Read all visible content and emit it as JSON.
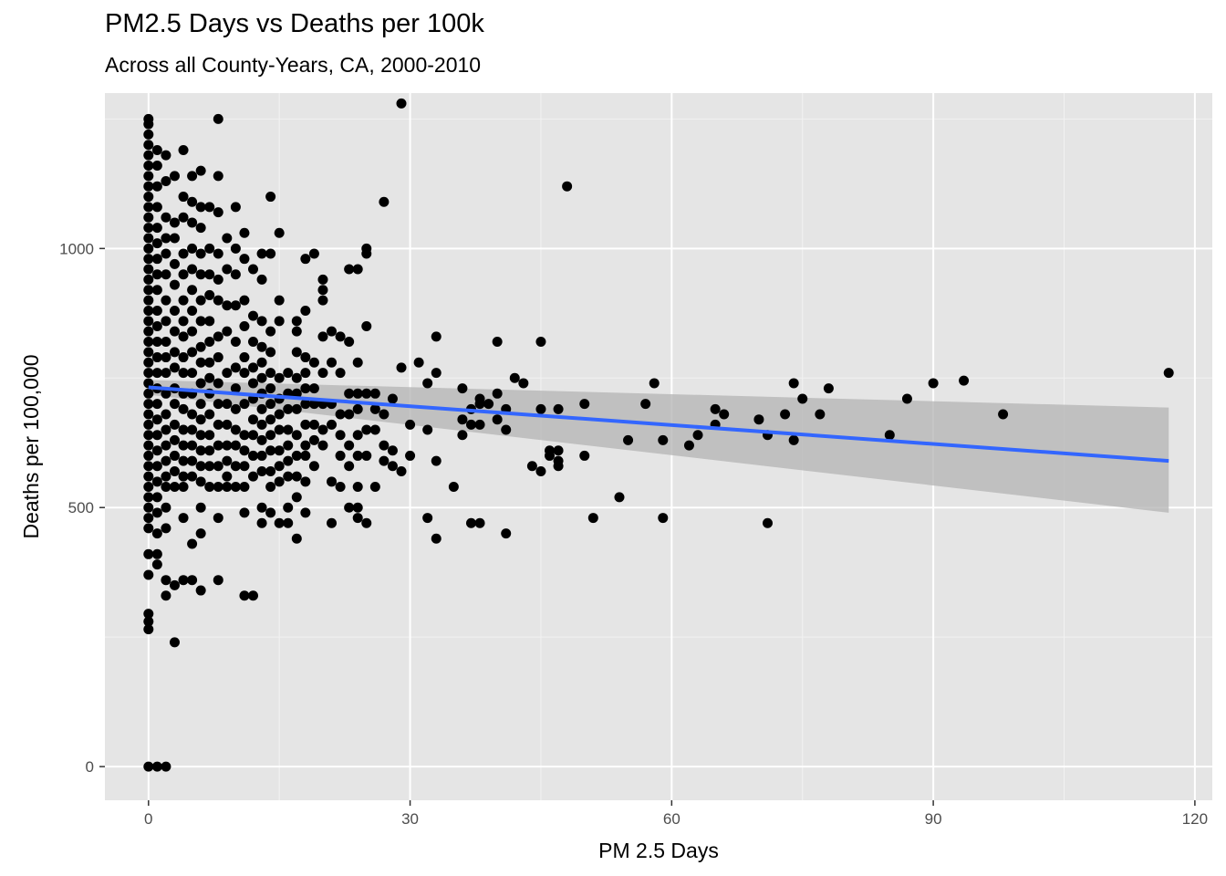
{
  "chart_data": {
    "type": "scatter",
    "title": "PM2.5 Days vs Deaths per 100k",
    "subtitle": "Across all County-Years, CA, 2000-2010",
    "xlabel": "PM 2.5 Days",
    "ylabel": "Deaths per 100,000",
    "xlim": [
      -5,
      122
    ],
    "ylim": [
      -65,
      1300
    ],
    "x_ticks": [
      0,
      30,
      60,
      90,
      120
    ],
    "x_tick_labels": [
      "0",
      "30",
      "60",
      "90",
      "120"
    ],
    "y_ticks": [
      0,
      500,
      1000
    ],
    "y_tick_labels": [
      "0",
      "500",
      "1000"
    ],
    "grid": true,
    "background": "#e5e5e5",
    "point_color": "#000000",
    "trend_color": "#3366ff",
    "band_color": "#b3b3b3",
    "trend": {
      "x": [
        0,
        117
      ],
      "y": [
        732,
        590
      ]
    },
    "confidence_band": {
      "x": [
        0,
        117
      ],
      "lower": [
        718,
        490
      ],
      "upper": [
        746,
        693
      ]
    },
    "points": [
      [
        0,
        1250
      ],
      [
        0,
        1240
      ],
      [
        0,
        1220
      ],
      [
        0,
        1200
      ],
      [
        0,
        1180
      ],
      [
        0,
        1160
      ],
      [
        0,
        1140
      ],
      [
        0,
        1120
      ],
      [
        0,
        1100
      ],
      [
        0,
        1080
      ],
      [
        0,
        1060
      ],
      [
        0,
        1040
      ],
      [
        0,
        1020
      ],
      [
        0,
        1000
      ],
      [
        0,
        980
      ],
      [
        0,
        960
      ],
      [
        0,
        940
      ],
      [
        0,
        920
      ],
      [
        0,
        900
      ],
      [
        0,
        880
      ],
      [
        0,
        860
      ],
      [
        0,
        840
      ],
      [
        0,
        820
      ],
      [
        0,
        800
      ],
      [
        0,
        780
      ],
      [
        0,
        760
      ],
      [
        0,
        740
      ],
      [
        0,
        720
      ],
      [
        0,
        700
      ],
      [
        0,
        680
      ],
      [
        0,
        660
      ],
      [
        0,
        640
      ],
      [
        0,
        620
      ],
      [
        0,
        600
      ],
      [
        0,
        580
      ],
      [
        0,
        560
      ],
      [
        0,
        540
      ],
      [
        0,
        520
      ],
      [
        0,
        500
      ],
      [
        0,
        480
      ],
      [
        0,
        460
      ],
      [
        0,
        410
      ],
      [
        0,
        370
      ],
      [
        0,
        295
      ],
      [
        0,
        280
      ],
      [
        0,
        265
      ],
      [
        0,
        0
      ],
      [
        1,
        1190
      ],
      [
        1,
        1160
      ],
      [
        1,
        1120
      ],
      [
        1,
        1080
      ],
      [
        1,
        1040
      ],
      [
        1,
        1010
      ],
      [
        1,
        980
      ],
      [
        1,
        950
      ],
      [
        1,
        920
      ],
      [
        1,
        880
      ],
      [
        1,
        850
      ],
      [
        1,
        820
      ],
      [
        1,
        790
      ],
      [
        1,
        760
      ],
      [
        1,
        730
      ],
      [
        1,
        700
      ],
      [
        1,
        670
      ],
      [
        1,
        640
      ],
      [
        1,
        610
      ],
      [
        1,
        580
      ],
      [
        1,
        550
      ],
      [
        1,
        520
      ],
      [
        1,
        490
      ],
      [
        1,
        450
      ],
      [
        1,
        410
      ],
      [
        1,
        390
      ],
      [
        1,
        0
      ],
      [
        2,
        1180
      ],
      [
        2,
        1130
      ],
      [
        2,
        1060
      ],
      [
        2,
        1020
      ],
      [
        2,
        990
      ],
      [
        2,
        950
      ],
      [
        2,
        900
      ],
      [
        2,
        860
      ],
      [
        2,
        820
      ],
      [
        2,
        790
      ],
      [
        2,
        760
      ],
      [
        2,
        720
      ],
      [
        2,
        680
      ],
      [
        2,
        650
      ],
      [
        2,
        620
      ],
      [
        2,
        590
      ],
      [
        2,
        560
      ],
      [
        2,
        540
      ],
      [
        2,
        500
      ],
      [
        2,
        460
      ],
      [
        2,
        360
      ],
      [
        2,
        330
      ],
      [
        2,
        0
      ],
      [
        3,
        1140
      ],
      [
        3,
        1050
      ],
      [
        3,
        1020
      ],
      [
        3,
        970
      ],
      [
        3,
        930
      ],
      [
        3,
        880
      ],
      [
        3,
        840
      ],
      [
        3,
        800
      ],
      [
        3,
        770
      ],
      [
        3,
        730
      ],
      [
        3,
        700
      ],
      [
        3,
        660
      ],
      [
        3,
        630
      ],
      [
        3,
        600
      ],
      [
        3,
        570
      ],
      [
        3,
        540
      ],
      [
        3,
        350
      ],
      [
        3,
        240
      ],
      [
        4,
        1190
      ],
      [
        4,
        1100
      ],
      [
        4,
        1060
      ],
      [
        4,
        990
      ],
      [
        4,
        950
      ],
      [
        4,
        900
      ],
      [
        4,
        860
      ],
      [
        4,
        830
      ],
      [
        4,
        790
      ],
      [
        4,
        760
      ],
      [
        4,
        720
      ],
      [
        4,
        690
      ],
      [
        4,
        650
      ],
      [
        4,
        620
      ],
      [
        4,
        590
      ],
      [
        4,
        560
      ],
      [
        4,
        540
      ],
      [
        4,
        480
      ],
      [
        4,
        360
      ],
      [
        5,
        1140
      ],
      [
        5,
        1090
      ],
      [
        5,
        1050
      ],
      [
        5,
        1000
      ],
      [
        5,
        960
      ],
      [
        5,
        920
      ],
      [
        5,
        880
      ],
      [
        5,
        840
      ],
      [
        5,
        800
      ],
      [
        5,
        760
      ],
      [
        5,
        720
      ],
      [
        5,
        680
      ],
      [
        5,
        650
      ],
      [
        5,
        620
      ],
      [
        5,
        590
      ],
      [
        5,
        560
      ],
      [
        5,
        430
      ],
      [
        5,
        360
      ],
      [
        6,
        1150
      ],
      [
        6,
        1080
      ],
      [
        6,
        1040
      ],
      [
        6,
        990
      ],
      [
        6,
        950
      ],
      [
        6,
        900
      ],
      [
        6,
        860
      ],
      [
        6,
        810
      ],
      [
        6,
        780
      ],
      [
        6,
        740
      ],
      [
        6,
        700
      ],
      [
        6,
        670
      ],
      [
        6,
        640
      ],
      [
        6,
        610
      ],
      [
        6,
        580
      ],
      [
        6,
        550
      ],
      [
        6,
        500
      ],
      [
        6,
        450
      ],
      [
        6,
        340
      ],
      [
        7,
        1080
      ],
      [
        7,
        1000
      ],
      [
        7,
        950
      ],
      [
        7,
        910
      ],
      [
        7,
        860
      ],
      [
        7,
        820
      ],
      [
        7,
        780
      ],
      [
        7,
        750
      ],
      [
        7,
        720
      ],
      [
        7,
        680
      ],
      [
        7,
        640
      ],
      [
        7,
        610
      ],
      [
        7,
        580
      ],
      [
        7,
        540
      ],
      [
        8,
        1250
      ],
      [
        8,
        1140
      ],
      [
        8,
        1070
      ],
      [
        8,
        990
      ],
      [
        8,
        940
      ],
      [
        8,
        900
      ],
      [
        8,
        830
      ],
      [
        8,
        790
      ],
      [
        8,
        740
      ],
      [
        8,
        700
      ],
      [
        8,
        660
      ],
      [
        8,
        620
      ],
      [
        8,
        580
      ],
      [
        8,
        540
      ],
      [
        8,
        480
      ],
      [
        8,
        360
      ],
      [
        9,
        1020
      ],
      [
        9,
        960
      ],
      [
        9,
        890
      ],
      [
        9,
        840
      ],
      [
        9,
        760
      ],
      [
        9,
        700
      ],
      [
        9,
        660
      ],
      [
        9,
        620
      ],
      [
        9,
        590
      ],
      [
        9,
        560
      ],
      [
        9,
        540
      ],
      [
        10,
        1080
      ],
      [
        10,
        1000
      ],
      [
        10,
        950
      ],
      [
        10,
        890
      ],
      [
        10,
        820
      ],
      [
        10,
        770
      ],
      [
        10,
        730
      ],
      [
        10,
        690
      ],
      [
        10,
        650
      ],
      [
        10,
        620
      ],
      [
        10,
        580
      ],
      [
        10,
        540
      ],
      [
        11,
        1030
      ],
      [
        11,
        980
      ],
      [
        11,
        900
      ],
      [
        11,
        850
      ],
      [
        11,
        790
      ],
      [
        11,
        760
      ],
      [
        11,
        700
      ],
      [
        11,
        640
      ],
      [
        11,
        610
      ],
      [
        11,
        580
      ],
      [
        11,
        540
      ],
      [
        11,
        490
      ],
      [
        11,
        330
      ],
      [
        12,
        960
      ],
      [
        12,
        870
      ],
      [
        12,
        820
      ],
      [
        12,
        770
      ],
      [
        12,
        740
      ],
      [
        12,
        710
      ],
      [
        12,
        670
      ],
      [
        12,
        640
      ],
      [
        12,
        600
      ],
      [
        12,
        560
      ],
      [
        12,
        330
      ],
      [
        13,
        990
      ],
      [
        13,
        940
      ],
      [
        13,
        860
      ],
      [
        13,
        810
      ],
      [
        13,
        780
      ],
      [
        13,
        750
      ],
      [
        13,
        720
      ],
      [
        13,
        690
      ],
      [
        13,
        660
      ],
      [
        13,
        630
      ],
      [
        13,
        600
      ],
      [
        13,
        570
      ],
      [
        13,
        500
      ],
      [
        13,
        470
      ],
      [
        14,
        1100
      ],
      [
        14,
        990
      ],
      [
        14,
        840
      ],
      [
        14,
        800
      ],
      [
        14,
        760
      ],
      [
        14,
        730
      ],
      [
        14,
        700
      ],
      [
        14,
        670
      ],
      [
        14,
        640
      ],
      [
        14,
        610
      ],
      [
        14,
        570
      ],
      [
        14,
        540
      ],
      [
        14,
        490
      ],
      [
        15,
        1030
      ],
      [
        15,
        900
      ],
      [
        15,
        860
      ],
      [
        15,
        750
      ],
      [
        15,
        710
      ],
      [
        15,
        680
      ],
      [
        15,
        650
      ],
      [
        15,
        610
      ],
      [
        15,
        580
      ],
      [
        15,
        550
      ],
      [
        15,
        470
      ],
      [
        16,
        760
      ],
      [
        16,
        720
      ],
      [
        16,
        690
      ],
      [
        16,
        650
      ],
      [
        16,
        620
      ],
      [
        16,
        590
      ],
      [
        16,
        560
      ],
      [
        16,
        500
      ],
      [
        16,
        470
      ],
      [
        17,
        860
      ],
      [
        17,
        840
      ],
      [
        17,
        800
      ],
      [
        17,
        750
      ],
      [
        17,
        720
      ],
      [
        17,
        690
      ],
      [
        17,
        640
      ],
      [
        17,
        600
      ],
      [
        17,
        560
      ],
      [
        17,
        520
      ],
      [
        17,
        440
      ],
      [
        18,
        980
      ],
      [
        18,
        880
      ],
      [
        18,
        790
      ],
      [
        18,
        760
      ],
      [
        18,
        730
      ],
      [
        18,
        700
      ],
      [
        18,
        660
      ],
      [
        18,
        620
      ],
      [
        18,
        600
      ],
      [
        18,
        550
      ],
      [
        18,
        490
      ],
      [
        19,
        990
      ],
      [
        19,
        780
      ],
      [
        19,
        730
      ],
      [
        19,
        700
      ],
      [
        19,
        660
      ],
      [
        19,
        630
      ],
      [
        19,
        580
      ],
      [
        20,
        940
      ],
      [
        20,
        920
      ],
      [
        20,
        900
      ],
      [
        20,
        830
      ],
      [
        20,
        760
      ],
      [
        20,
        700
      ],
      [
        20,
        650
      ],
      [
        20,
        620
      ],
      [
        21,
        840
      ],
      [
        21,
        780
      ],
      [
        21,
        700
      ],
      [
        21,
        660
      ],
      [
        21,
        550
      ],
      [
        21,
        470
      ],
      [
        22,
        830
      ],
      [
        22,
        760
      ],
      [
        22,
        680
      ],
      [
        22,
        640
      ],
      [
        22,
        600
      ],
      [
        22,
        540
      ],
      [
        23,
        960
      ],
      [
        23,
        820
      ],
      [
        23,
        720
      ],
      [
        23,
        680
      ],
      [
        23,
        620
      ],
      [
        23,
        580
      ],
      [
        23,
        500
      ],
      [
        24,
        960
      ],
      [
        24,
        780
      ],
      [
        24,
        720
      ],
      [
        24,
        690
      ],
      [
        24,
        640
      ],
      [
        24,
        600
      ],
      [
        24,
        540
      ],
      [
        24,
        500
      ],
      [
        24,
        480
      ],
      [
        25,
        1000
      ],
      [
        25,
        990
      ],
      [
        25,
        850
      ],
      [
        25,
        720
      ],
      [
        25,
        650
      ],
      [
        25,
        600
      ],
      [
        25,
        470
      ],
      [
        26,
        720
      ],
      [
        26,
        690
      ],
      [
        26,
        650
      ],
      [
        26,
        540
      ],
      [
        27,
        1090
      ],
      [
        27,
        680
      ],
      [
        27,
        620
      ],
      [
        27,
        590
      ],
      [
        28,
        710
      ],
      [
        28,
        610
      ],
      [
        28,
        580
      ],
      [
        29,
        1280
      ],
      [
        29,
        770
      ],
      [
        29,
        570
      ],
      [
        30,
        660
      ],
      [
        30,
        600
      ],
      [
        31,
        780
      ],
      [
        32,
        740
      ],
      [
        32,
        650
      ],
      [
        32,
        480
      ],
      [
        33,
        830
      ],
      [
        33,
        760
      ],
      [
        33,
        590
      ],
      [
        33,
        440
      ],
      [
        35,
        540
      ],
      [
        36,
        730
      ],
      [
        36,
        670
      ],
      [
        36,
        640
      ],
      [
        37,
        690
      ],
      [
        37,
        660
      ],
      [
        37,
        470
      ],
      [
        38,
        710
      ],
      [
        38,
        700
      ],
      [
        38,
        660
      ],
      [
        38,
        470
      ],
      [
        39,
        700
      ],
      [
        40,
        820
      ],
      [
        40,
        720
      ],
      [
        40,
        670
      ],
      [
        41,
        690
      ],
      [
        41,
        650
      ],
      [
        41,
        450
      ],
      [
        42,
        750
      ],
      [
        43,
        740
      ],
      [
        44,
        580
      ],
      [
        45,
        820
      ],
      [
        45,
        690
      ],
      [
        45,
        570
      ],
      [
        46,
        610
      ],
      [
        46,
        600
      ],
      [
        47,
        690
      ],
      [
        47,
        610
      ],
      [
        47,
        590
      ],
      [
        47,
        580
      ],
      [
        48,
        1120
      ],
      [
        50,
        700
      ],
      [
        50,
        600
      ],
      [
        51,
        480
      ],
      [
        54,
        520
      ],
      [
        55,
        630
      ],
      [
        57,
        700
      ],
      [
        58,
        740
      ],
      [
        59,
        630
      ],
      [
        59,
        480
      ],
      [
        62,
        620
      ],
      [
        63,
        640
      ],
      [
        65,
        690
      ],
      [
        65,
        660
      ],
      [
        66,
        680
      ],
      [
        70,
        670
      ],
      [
        71,
        640
      ],
      [
        71,
        470
      ],
      [
        73,
        680
      ],
      [
        74,
        740
      ],
      [
        74,
        630
      ],
      [
        75,
        710
      ],
      [
        77,
        680
      ],
      [
        78,
        730
      ],
      [
        85,
        640
      ],
      [
        87,
        710
      ],
      [
        90,
        740
      ],
      [
        93.5,
        745
      ],
      [
        98,
        680
      ],
      [
        117,
        760
      ]
    ]
  }
}
